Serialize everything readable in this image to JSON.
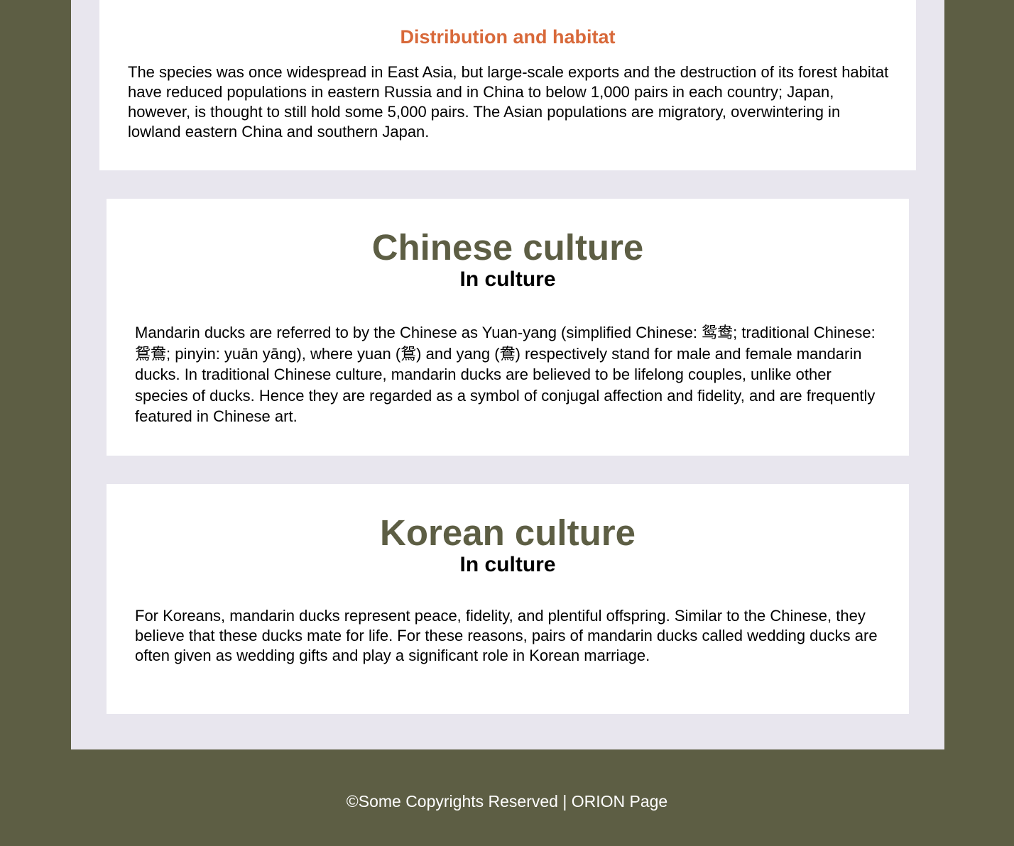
{
  "habitat": {
    "title": "Distribution and habitat",
    "text": "The species was once widespread in East Asia, but large-scale exports and the destruction of its forest habitat have reduced populations in eastern Russia and in China to below 1,000 pairs in each country; Japan, however, is thought to still hold some 5,000 pairs. The Asian populations are migratory, overwintering in lowland eastern China and southern Japan."
  },
  "chinese": {
    "title": "Chinese culture",
    "subtitle": "In culture",
    "text": "Mandarin ducks are referred to by the Chinese as Yuan-yang (simplified Chinese: 鸳鸯; traditional Chinese: 鴛鴦; pinyin: yuān yāng), where yuan (鴛) and yang (鴦) respectively stand for male and female mandarin ducks. In traditional Chinese culture, mandarin ducks are believed to be lifelong couples, unlike other species of ducks. Hence they are regarded as a symbol of conjugal affection and fidelity, and are frequently featured in Chinese art."
  },
  "korean": {
    "title": "Korean culture",
    "subtitle": "In culture",
    "text": "For Koreans, mandarin ducks represent peace, fidelity, and plentiful offspring. Similar to the Chinese, they believe that these ducks mate for life. For these reasons, pairs of mandarin ducks called wedding ducks are often given as wedding gifts and play a significant role in Korean marriage."
  },
  "footer": {
    "text": "©Some Copyrights Reserved | ORION Page"
  },
  "colors": {
    "background": "#5d5e44",
    "content_background": "#e8e6ee",
    "accent_orange": "#d8693a",
    "heading_olive": "#5d5e44"
  }
}
